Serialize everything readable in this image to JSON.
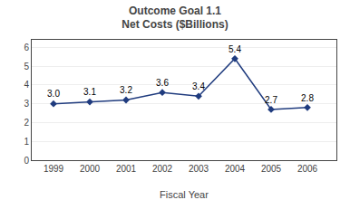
{
  "chart_data": {
    "type": "line",
    "title": "Outcome Goal 1.1",
    "subtitle": "Net Costs ($Billions)",
    "xlabel": "Fiscal Year",
    "x": [
      1999,
      2000,
      2001,
      2002,
      2003,
      2004,
      2005,
      2006
    ],
    "values": [
      3.0,
      3.1,
      3.2,
      3.6,
      3.4,
      5.4,
      2.7,
      2.8
    ],
    "value_labels": [
      "3.0",
      "3.1",
      "3.2",
      "3.6",
      "3.4",
      "5.4",
      "2.7",
      "2.8"
    ],
    "data_labels": true,
    "xlim": [
      1998.4,
      2006.8
    ],
    "xticks": [
      1999,
      2000,
      2001,
      2002,
      2003,
      2004,
      2005,
      2006
    ],
    "ylim": [
      0,
      6.4
    ],
    "yticks": [
      0,
      1,
      2,
      3,
      4,
      5,
      6
    ],
    "color": "#1F3B7E",
    "marker": "diamond",
    "grid": true
  }
}
